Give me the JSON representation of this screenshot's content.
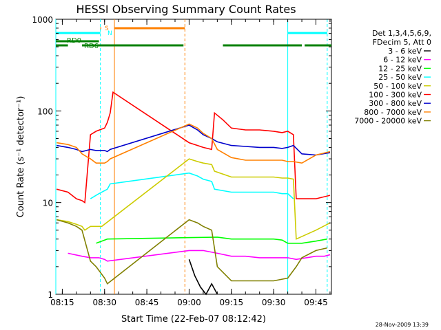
{
  "chart_data": {
    "type": "line",
    "title": "HESSI Observing Summary Count Rates",
    "xlabel": "Start Time (22-Feb-07 08:12:42)",
    "ylabel": "Count Rate (s⁻¹ detector⁻¹)",
    "xlim": [
      "08:12:42",
      "09:50:30"
    ],
    "ylim": [
      1,
      1000
    ],
    "yscale": "log",
    "x_ticks": [
      "08:15",
      "08:30",
      "08:45",
      "09:00",
      "09:15",
      "09:30",
      "09:45"
    ],
    "y_ticks": [
      "1",
      "10",
      "100",
      "1000"
    ],
    "grid": false,
    "legend_position": "right",
    "legend_header": [
      "Det 1,3,4,5,6,9,",
      "FDecim 5, Att 0"
    ],
    "series": [
      {
        "name": "3 - 6 keV",
        "color": "#000000",
        "x": [
          "09:00",
          "09:02",
          "09:04",
          "09:06",
          "09:08",
          "09:10"
        ],
        "y": [
          2.4,
          1.6,
          1.2,
          1.0,
          1.3,
          1.0
        ]
      },
      {
        "name": "6 - 12 keV",
        "color": "#ff00ff",
        "x": [
          "08:17",
          "08:22",
          "08:25",
          "08:28",
          "08:30",
          "08:31",
          "09:00",
          "09:05",
          "09:10",
          "09:15",
          "09:20",
          "09:25",
          "09:30",
          "09:35",
          "09:38",
          "09:45",
          "09:48",
          "09:50"
        ],
        "y": [
          2.8,
          2.6,
          2.5,
          2.5,
          2.4,
          2.3,
          3.0,
          3.0,
          2.8,
          2.6,
          2.6,
          2.5,
          2.5,
          2.5,
          2.4,
          2.6,
          2.6,
          2.7
        ]
      },
      {
        "name": "12 - 25 keV",
        "color": "#00ff00",
        "x": [
          "08:27",
          "08:29",
          "08:31",
          "09:10",
          "09:15",
          "09:20",
          "09:25",
          "09:30",
          "09:33",
          "09:35",
          "09:40",
          "09:45",
          "09:49"
        ],
        "y": [
          3.6,
          3.8,
          4.0,
          4.2,
          4.0,
          4.0,
          4.0,
          4.0,
          3.9,
          3.6,
          3.6,
          3.8,
          4.0
        ]
      },
      {
        "name": "25 - 50 keV",
        "color": "#00ffff",
        "x": [
          "08:25",
          "08:27",
          "08:28",
          "08:30",
          "08:31",
          "08:32",
          "09:00",
          "09:03",
          "09:05",
          "09:08",
          "09:09",
          "09:15",
          "09:20",
          "09:25",
          "09:30",
          "09:33",
          "09:35",
          "09:37"
        ],
        "y": [
          11,
          12,
          12.5,
          13.5,
          14,
          16,
          21,
          19.5,
          18,
          17,
          14,
          13,
          13,
          13,
          13,
          12.5,
          12.5,
          11
        ]
      },
      {
        "name": "50 - 100 keV",
        "color": "#cccc00",
        "x": [
          "08:13",
          "08:17",
          "08:20",
          "08:22",
          "08:23",
          "08:25",
          "08:27",
          "08:29",
          "09:00",
          "09:03",
          "09:05",
          "09:08",
          "09:09",
          "09:15",
          "09:20",
          "09:25",
          "09:30",
          "09:33",
          "09:35",
          "09:37",
          "09:38",
          "09:45",
          "09:50"
        ],
        "y": [
          6.5,
          6.2,
          5.8,
          5.5,
          5,
          5.5,
          5.5,
          5.5,
          30,
          28,
          27,
          26,
          22,
          19,
          19,
          19,
          19,
          18.5,
          18.5,
          18,
          4,
          5,
          6
        ]
      },
      {
        "name": "100 - 300 keV",
        "color": "#ff0000",
        "x": [
          "08:13",
          "08:17",
          "08:20",
          "08:22",
          "08:23",
          "08:25",
          "08:27",
          "08:30",
          "08:31",
          "08:32",
          "08:33",
          "09:00",
          "09:03",
          "09:05",
          "09:08",
          "09:09",
          "09:12",
          "09:15",
          "09:20",
          "09:25",
          "09:30",
          "09:33",
          "09:35",
          "09:37",
          "09:38",
          "09:45",
          "09:50"
        ],
        "y": [
          14,
          13,
          11,
          10.5,
          10,
          55,
          60,
          65,
          75,
          95,
          160,
          45,
          42,
          40,
          38,
          95,
          80,
          65,
          62,
          62,
          60,
          58,
          60,
          55,
          11,
          11,
          12
        ]
      },
      {
        "name": "300 - 800 keV",
        "color": "#0000cc",
        "x": [
          "08:13",
          "08:17",
          "08:20",
          "08:22",
          "08:25",
          "08:27",
          "08:30",
          "08:31",
          "08:32",
          "09:00",
          "09:03",
          "09:05",
          "09:08",
          "09:10",
          "09:15",
          "09:20",
          "09:25",
          "09:30",
          "09:33",
          "09:35",
          "09:37",
          "09:40",
          "09:45",
          "09:50"
        ],
        "y": [
          42,
          40,
          38,
          36,
          38,
          37,
          37,
          36,
          38,
          70,
          62,
          55,
          50,
          46,
          42,
          41,
          40,
          40,
          39,
          40,
          42,
          34,
          33,
          35
        ]
      },
      {
        "name": "800 - 7000 keV",
        "color": "#ff8000",
        "x": [
          "08:13",
          "08:17",
          "08:20",
          "08:22",
          "08:25",
          "08:27",
          "08:30",
          "08:31",
          "08:32",
          "09:00",
          "09:03",
          "09:05",
          "09:08",
          "09:10",
          "09:15",
          "09:20",
          "09:25",
          "09:30",
          "09:33",
          "09:35",
          "09:37",
          "09:40",
          "09:45",
          "09:50"
        ],
        "y": [
          45,
          43,
          40,
          34,
          30,
          27,
          27,
          28,
          30,
          72,
          65,
          57,
          50,
          38,
          31,
          29,
          29,
          29,
          29,
          28,
          28,
          27,
          33,
          36
        ]
      },
      {
        "name": "7000 - 20000 keV",
        "color": "#808000",
        "x": [
          "08:13",
          "08:17",
          "08:20",
          "08:22",
          "08:25",
          "08:27",
          "08:30",
          "08:31",
          "09:00",
          "09:03",
          "09:05",
          "09:08",
          "09:10",
          "09:15",
          "09:20",
          "09:25",
          "09:30",
          "09:35",
          "09:38",
          "09:40",
          "09:45",
          "09:49"
        ],
        "y": [
          6.5,
          6.0,
          5.5,
          5.0,
          2.3,
          2.0,
          1.5,
          1.3,
          6.5,
          6.0,
          5.5,
          5.0,
          2.0,
          1.4,
          1.4,
          1.4,
          1.4,
          1.5,
          2.0,
          2.5,
          3.0,
          3.2
        ]
      }
    ],
    "flags": [
      {
        "label": "RD0",
        "color": "#008000",
        "segments": [
          [
            "08:12:42",
            "08:28:00"
          ]
        ]
      },
      {
        "label": "RD6",
        "color": "#008000",
        "segments": [
          [
            "08:12:42",
            "08:17:00"
          ],
          [
            "08:22:00",
            "08:58:00"
          ],
          [
            "09:12:00",
            "09:40:00"
          ],
          [
            "09:41:00",
            "09:50:30"
          ]
        ]
      },
      {
        "label": "S",
        "color": "#ff8000",
        "segments": [
          [
            "08:28:30",
            "08:28:50"
          ],
          [
            "08:33:30",
            "08:58:30"
          ]
        ]
      },
      {
        "label": "N",
        "color": "#00ffff",
        "segments": [
          [
            "08:12:42",
            "08:28:30"
          ],
          [
            "09:35:00",
            "09:49:00"
          ]
        ]
      }
    ],
    "vertical_markers": [
      {
        "time": "08:12:42",
        "color": "#00ffff",
        "style": "solid"
      },
      {
        "time": "08:28:30",
        "color": "#00ffff",
        "style": "dashed"
      },
      {
        "time": "08:33:30",
        "color": "#ff8000",
        "style": "solid"
      },
      {
        "time": "08:58:30",
        "color": "#ff8000",
        "style": "dashed"
      },
      {
        "time": "09:35:00",
        "color": "#00ffff",
        "style": "solid"
      },
      {
        "time": "09:49:00",
        "color": "#00ffff",
        "style": "dashed"
      }
    ]
  },
  "footer": {
    "timestamp": "28-Nov-2009 13:39"
  }
}
